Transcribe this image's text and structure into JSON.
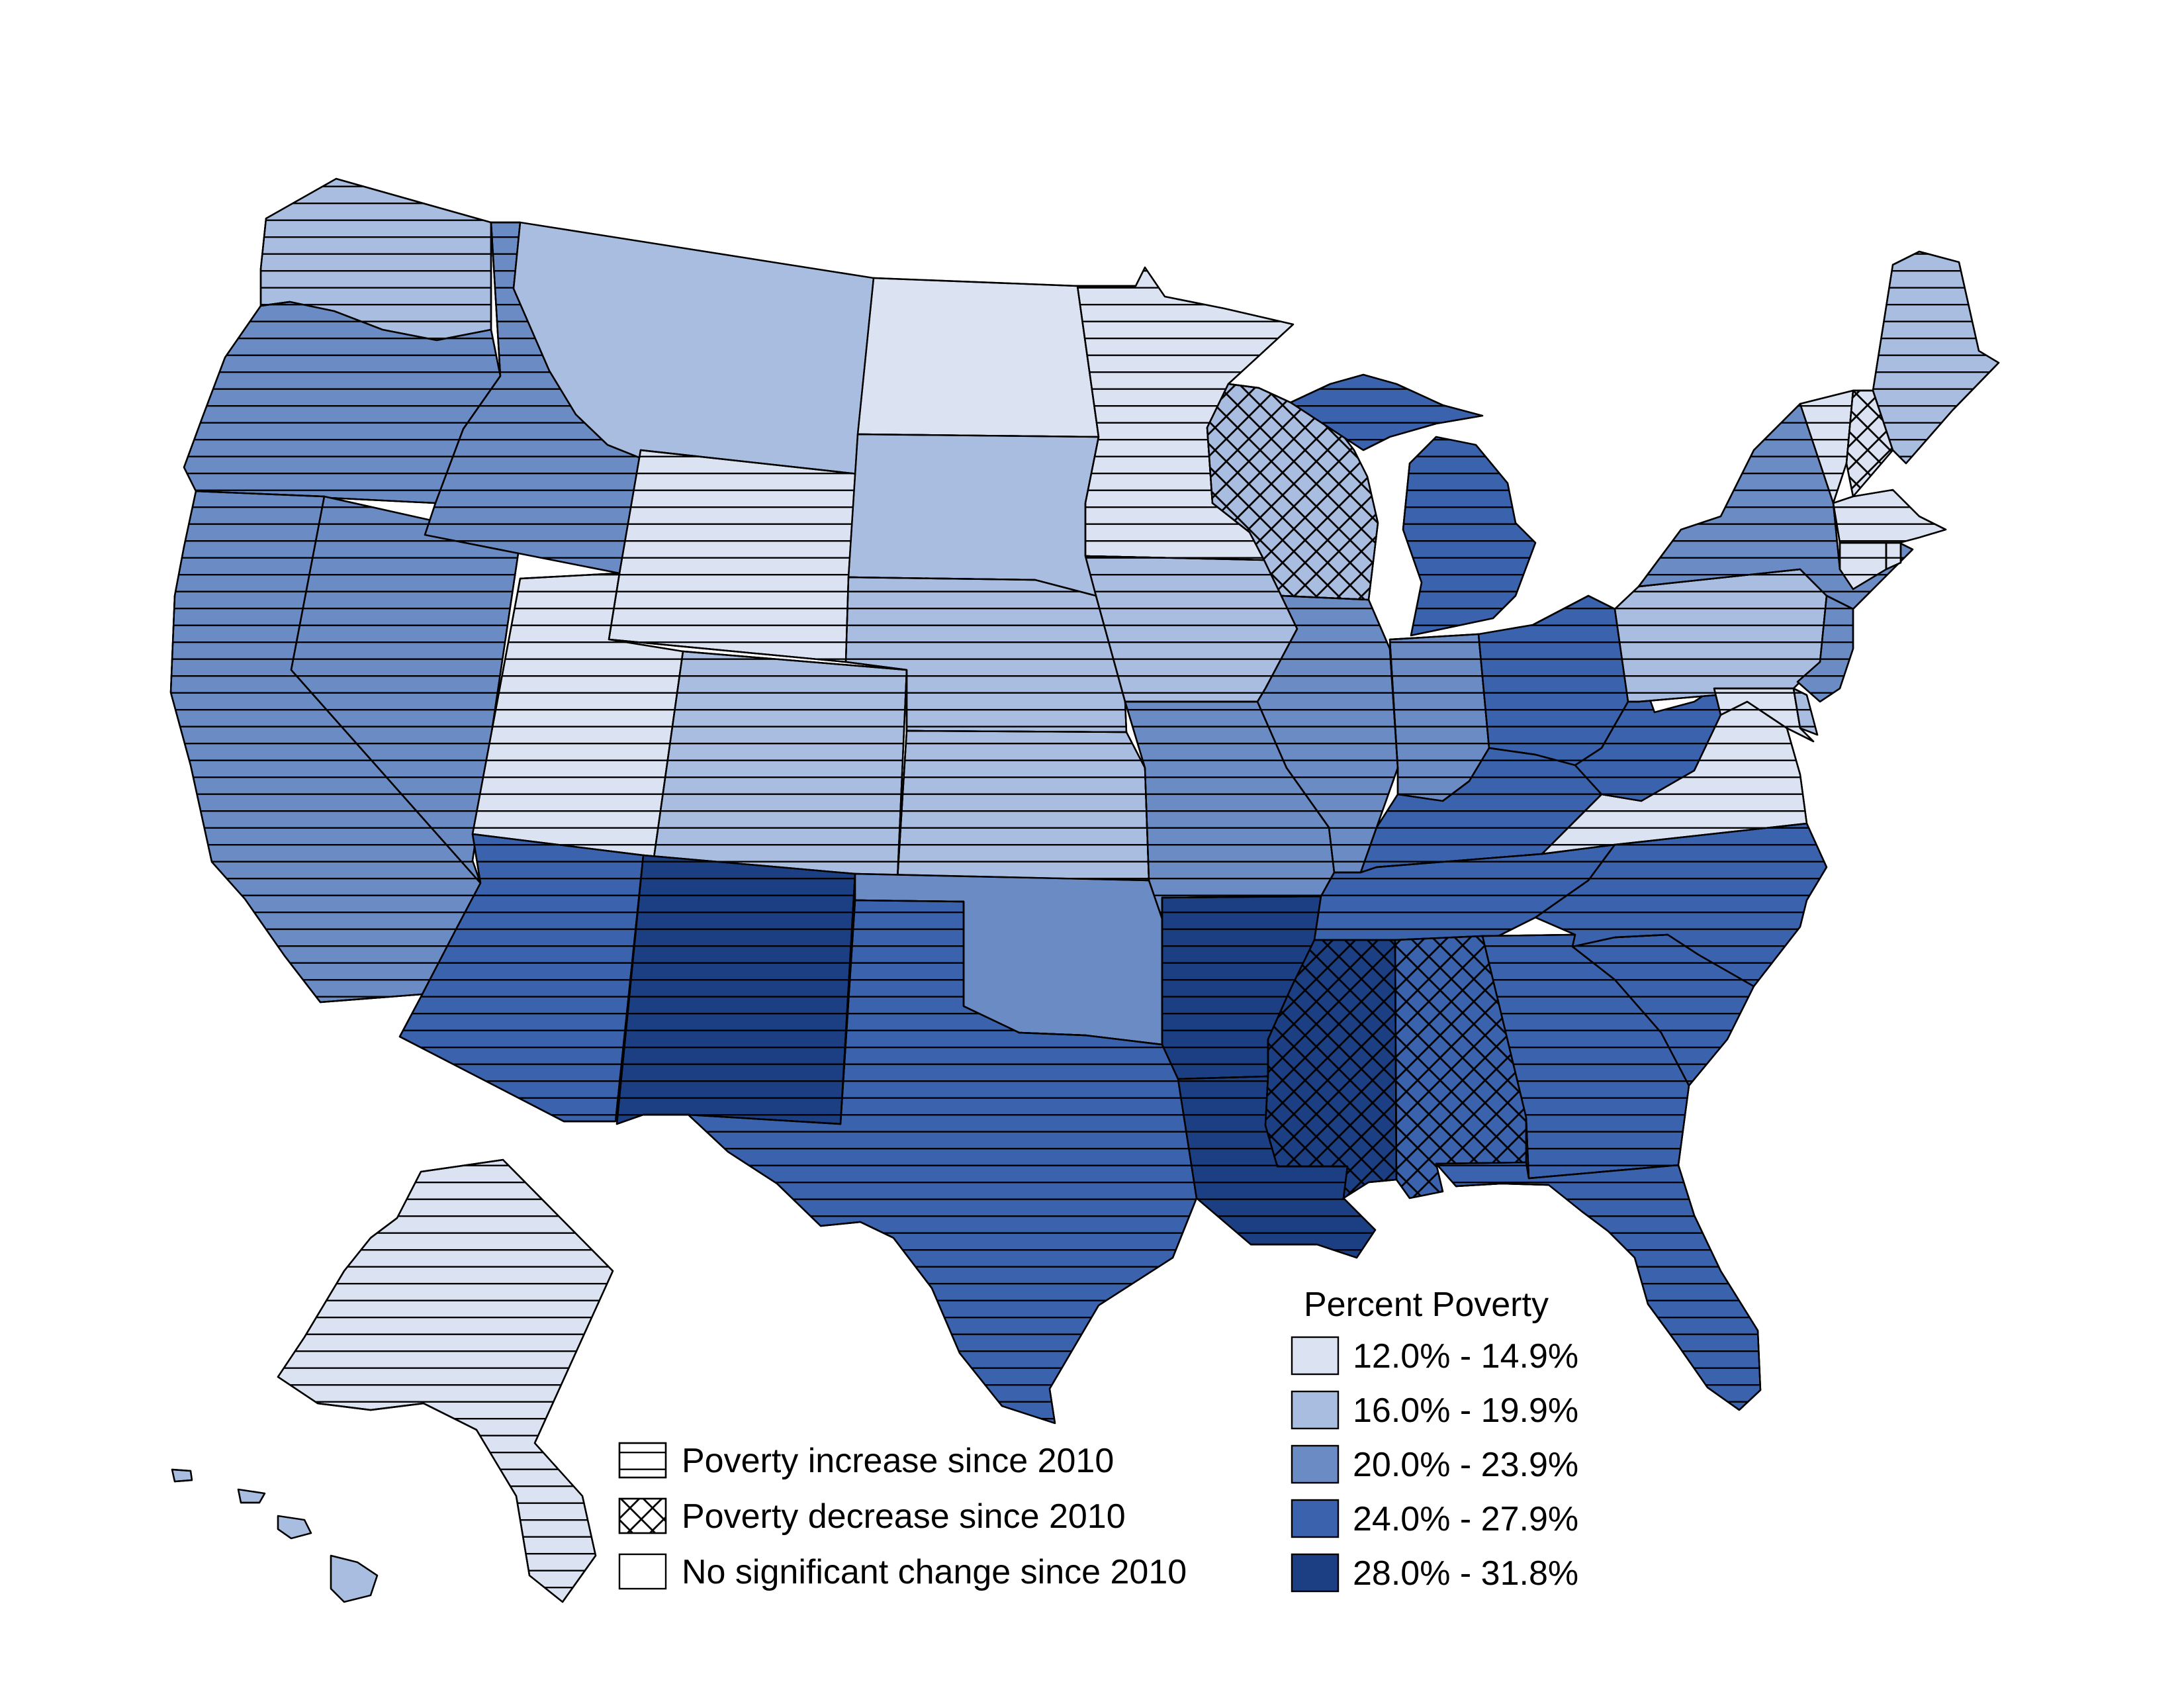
{
  "legend": {
    "title": "Percent Poverty",
    "classes": [
      {
        "label": "12.0% - 14.9%",
        "color": "#dbe3f3"
      },
      {
        "label": "16.0% - 19.9%",
        "color": "#a9bde1"
      },
      {
        "label": "20.0% - 23.9%",
        "color": "#6a8bc3"
      },
      {
        "label": "24.0% - 27.9%",
        "color": "#3a62ad"
      },
      {
        "label": "28.0% - 31.8%",
        "color": "#1c3f84"
      }
    ]
  },
  "change_legend": {
    "items": [
      {
        "label": "Poverty increase since 2010",
        "pattern": "horizontal-lines"
      },
      {
        "label": "Poverty decrease since 2010",
        "pattern": "crosshatch"
      },
      {
        "label": "No significant change since 2010",
        "pattern": "none"
      }
    ]
  },
  "states": [
    {
      "id": "WA",
      "class": 1,
      "change": "increase"
    },
    {
      "id": "OR",
      "class": 2,
      "change": "increase"
    },
    {
      "id": "CA",
      "class": 2,
      "change": "increase"
    },
    {
      "id": "ID",
      "class": 2,
      "change": "increase"
    },
    {
      "id": "NV",
      "class": 2,
      "change": "increase"
    },
    {
      "id": "MT",
      "class": 1,
      "change": "none"
    },
    {
      "id": "WY",
      "class": 0,
      "change": "increase"
    },
    {
      "id": "UT",
      "class": 0,
      "change": "increase"
    },
    {
      "id": "AZ",
      "class": 3,
      "change": "increase"
    },
    {
      "id": "CO",
      "class": 1,
      "change": "increase"
    },
    {
      "id": "NM",
      "class": 4,
      "change": "increase"
    },
    {
      "id": "ND",
      "class": 0,
      "change": "none"
    },
    {
      "id": "SD",
      "class": 1,
      "change": "none"
    },
    {
      "id": "NE",
      "class": 1,
      "change": "increase"
    },
    {
      "id": "KS",
      "class": 1,
      "change": "increase"
    },
    {
      "id": "OK",
      "class": 2,
      "change": "none"
    },
    {
      "id": "TX",
      "class": 3,
      "change": "increase"
    },
    {
      "id": "MN",
      "class": 0,
      "change": "increase"
    },
    {
      "id": "IA",
      "class": 1,
      "change": "increase"
    },
    {
      "id": "MO",
      "class": 2,
      "change": "increase"
    },
    {
      "id": "AR",
      "class": 4,
      "change": "increase"
    },
    {
      "id": "LA",
      "class": 4,
      "change": "increase"
    },
    {
      "id": "WI",
      "class": 1,
      "change": "decrease"
    },
    {
      "id": "IL",
      "class": 2,
      "change": "increase"
    },
    {
      "id": "MI",
      "class": 3,
      "change": "increase"
    },
    {
      "id": "IN",
      "class": 2,
      "change": "increase"
    },
    {
      "id": "OH",
      "class": 3,
      "change": "increase"
    },
    {
      "id": "KY",
      "class": 3,
      "change": "increase"
    },
    {
      "id": "TN",
      "class": 3,
      "change": "increase"
    },
    {
      "id": "MS",
      "class": 4,
      "change": "decrease"
    },
    {
      "id": "AL",
      "class": 3,
      "change": "decrease"
    },
    {
      "id": "GA",
      "class": 3,
      "change": "increase"
    },
    {
      "id": "FL",
      "class": 3,
      "change": "increase"
    },
    {
      "id": "SC",
      "class": 3,
      "change": "increase"
    },
    {
      "id": "NC",
      "class": 3,
      "change": "increase"
    },
    {
      "id": "VA",
      "class": 0,
      "change": "increase"
    },
    {
      "id": "WV",
      "class": 3,
      "change": "increase"
    },
    {
      "id": "PA",
      "class": 1,
      "change": "increase"
    },
    {
      "id": "NY",
      "class": 2,
      "change": "increase"
    },
    {
      "id": "NJ",
      "class": 2,
      "change": "increase"
    },
    {
      "id": "MD",
      "class": 0,
      "change": "increase"
    },
    {
      "id": "DE",
      "class": 1,
      "change": "increase"
    },
    {
      "id": "VT",
      "class": 0,
      "change": "increase"
    },
    {
      "id": "NH",
      "class": 0,
      "change": "decrease"
    },
    {
      "id": "ME",
      "class": 1,
      "change": "increase"
    },
    {
      "id": "MA",
      "class": 0,
      "change": "increase"
    },
    {
      "id": "CT",
      "class": 0,
      "change": "increase"
    },
    {
      "id": "RI",
      "class": 0,
      "change": "increase"
    },
    {
      "id": "AK",
      "class": 0,
      "change": "increase"
    },
    {
      "id": "HI",
      "class": 1,
      "change": "none"
    }
  ]
}
